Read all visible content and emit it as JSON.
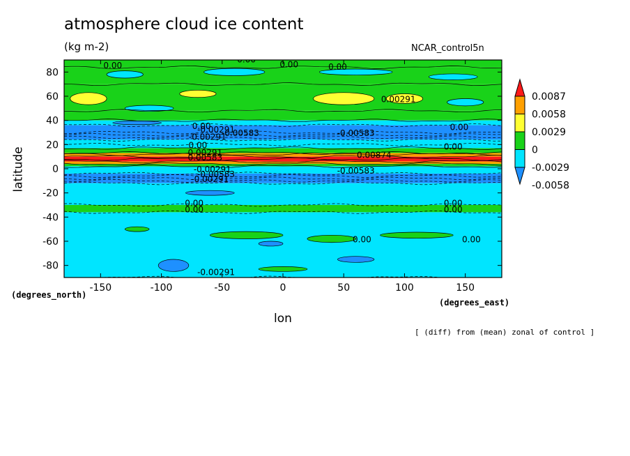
{
  "header": {
    "title": "atmosphere cloud ice content",
    "units": "(kg m-2)",
    "run": "NCAR_control5n",
    "ylabel": "latitude",
    "yunits": "(degrees_north)",
    "xlabel": "lon",
    "xunits": "(degrees_east)",
    "note": "[ (diff) from (mean) zonal of control ]"
  },
  "colors": {
    "red": "#ff1a1a",
    "orange": "#ffa000",
    "yellow": "#ffff33",
    "green": "#19d219",
    "cyan": "#00e5ff",
    "blue": "#1e90ff"
  },
  "chart_data": {
    "type": "heatmap",
    "xlim": [
      -180,
      180
    ],
    "ylim": [
      -90,
      90
    ],
    "xticks": [
      -150,
      -100,
      -50,
      0,
      50,
      100,
      150
    ],
    "yticks": [
      -80,
      -60,
      -40,
      -20,
      0,
      20,
      40,
      60,
      80
    ],
    "xtick_labels": [
      "-150",
      "-100",
      "-50",
      "0",
      "50",
      "100",
      "150"
    ],
    "ytick_labels": [
      "-80",
      "-60",
      "-40",
      "-20",
      "0",
      "20",
      "40",
      "60",
      "80"
    ],
    "colorbar": {
      "levels": [
        "0.0087",
        "0.0058",
        "0.0029",
        "0",
        "-0.0029",
        "-0.0058"
      ],
      "colors": [
        "#ff1a1a",
        "#ffa000",
        "#ffff33",
        "#19d219",
        "#00e5ff",
        "#1e90ff"
      ]
    },
    "bands": [
      {
        "lat_from": 84,
        "lat_to": 90,
        "color": "#19d219"
      },
      {
        "lat_from": 70,
        "lat_to": 84,
        "color": "#19d219"
      },
      {
        "lat_from": 48,
        "lat_to": 70,
        "color": "#19d219"
      },
      {
        "lat_from": 40,
        "lat_to": 48,
        "color": "#19d219"
      },
      {
        "lat_from": 36,
        "lat_to": 40,
        "color": "#00e5ff"
      },
      {
        "lat_from": 24,
        "lat_to": 36,
        "color": "#1e90ff"
      },
      {
        "lat_from": 17,
        "lat_to": 24,
        "color": "#00e5ff"
      },
      {
        "lat_from": 13,
        "lat_to": 17,
        "color": "#19d219"
      },
      {
        "lat_from": 10,
        "lat_to": 13,
        "color": "#ffa000"
      },
      {
        "lat_from": 6,
        "lat_to": 10,
        "color": "#ff1a1a"
      },
      {
        "lat_from": 4,
        "lat_to": 6,
        "color": "#ffa000"
      },
      {
        "lat_from": 2,
        "lat_to": 4,
        "color": "#19d219"
      },
      {
        "lat_from": -4,
        "lat_to": 2,
        "color": "#00e5ff"
      },
      {
        "lat_from": -12,
        "lat_to": -4,
        "color": "#1e90ff"
      },
      {
        "lat_from": -30,
        "lat_to": -12,
        "color": "#00e5ff"
      },
      {
        "lat_from": -36,
        "lat_to": -30,
        "color": "#19d219"
      },
      {
        "lat_from": -90,
        "lat_to": -36,
        "color": "#00e5ff"
      }
    ],
    "patches": [
      {
        "lon": -130,
        "lat": 78,
        "w": 30,
        "h": 6,
        "color": "#00e5ff"
      },
      {
        "lon": -40,
        "lat": 80,
        "w": 50,
        "h": 6,
        "color": "#00e5ff"
      },
      {
        "lon": 60,
        "lat": 80,
        "w": 60,
        "h": 5,
        "color": "#00e5ff"
      },
      {
        "lon": 140,
        "lat": 76,
        "w": 40,
        "h": 5,
        "color": "#00e5ff"
      },
      {
        "lon": -160,
        "lat": 58,
        "w": 30,
        "h": 10,
        "color": "#ffff33"
      },
      {
        "lon": -70,
        "lat": 62,
        "w": 30,
        "h": 6,
        "color": "#ffff33"
      },
      {
        "lon": 50,
        "lat": 58,
        "w": 50,
        "h": 10,
        "color": "#ffff33"
      },
      {
        "lon": 100,
        "lat": 58,
        "w": 30,
        "h": 8,
        "color": "#ffff33"
      },
      {
        "lon": -110,
        "lat": 50,
        "w": 40,
        "h": 5,
        "color": "#00e5ff"
      },
      {
        "lon": 150,
        "lat": 55,
        "w": 30,
        "h": 6,
        "color": "#00e5ff"
      },
      {
        "lon": -60,
        "lat": -20,
        "w": 40,
        "h": 4,
        "color": "#1e90ff"
      },
      {
        "lon": -120,
        "lat": -50,
        "w": 20,
        "h": 4,
        "color": "#19d219"
      },
      {
        "lon": -30,
        "lat": -55,
        "w": 60,
        "h": 6,
        "color": "#19d219"
      },
      {
        "lon": 40,
        "lat": -58,
        "w": 40,
        "h": 6,
        "color": "#19d219"
      },
      {
        "lon": 110,
        "lat": -55,
        "w": 60,
        "h": 5,
        "color": "#19d219"
      },
      {
        "lon": -90,
        "lat": -80,
        "w": 25,
        "h": 10,
        "color": "#1e90ff"
      },
      {
        "lon": -10,
        "lat": -62,
        "w": 20,
        "h": 4,
        "color": "#1e90ff"
      },
      {
        "lon": 60,
        "lat": -75,
        "w": 30,
        "h": 5,
        "color": "#1e90ff"
      },
      {
        "lon": 0,
        "lat": -83,
        "w": 40,
        "h": 4,
        "color": "#19d219"
      },
      {
        "lon": -120,
        "lat": 38,
        "w": 40,
        "h": 3,
        "color": "#1e90ff"
      }
    ],
    "contour_labels": [
      {
        "lon": -140,
        "lat": 83,
        "text": "0.00"
      },
      {
        "lon": -30,
        "lat": 88,
        "text": "0.00"
      },
      {
        "lon": 5,
        "lat": 84,
        "text": "0.00"
      },
      {
        "lon": 45,
        "lat": 82,
        "text": "0.00"
      },
      {
        "lon": 95,
        "lat": 55,
        "text": "0.00291"
      },
      {
        "lon": -67,
        "lat": 33,
        "text": "0.00"
      },
      {
        "lon": -55,
        "lat": 30,
        "text": "-0.00291"
      },
      {
        "lon": -35,
        "lat": 27,
        "text": "-0.00583"
      },
      {
        "lon": -62,
        "lat": 24,
        "text": "-0.00291"
      },
      {
        "lon": 60,
        "lat": 27,
        "text": "-0.00583"
      },
      {
        "lon": 145,
        "lat": 32,
        "text": "0.00"
      },
      {
        "lon": 140,
        "lat": 16,
        "text": "0.00"
      },
      {
        "lon": -70,
        "lat": 17,
        "text": "0.00"
      },
      {
        "lon": -64,
        "lat": 11,
        "text": "0.00291"
      },
      {
        "lon": -64,
        "lat": 7,
        "text": "0.00583"
      },
      {
        "lon": 75,
        "lat": 9,
        "text": "0.00874"
      },
      {
        "lon": -58,
        "lat": -3,
        "text": "-0.00291"
      },
      {
        "lon": -55,
        "lat": -7,
        "text": "-0.00583"
      },
      {
        "lon": -60,
        "lat": -11,
        "text": "-0.00291"
      },
      {
        "lon": 60,
        "lat": -4,
        "text": "-0.00583"
      },
      {
        "lon": -73,
        "lat": -31,
        "text": "0.00"
      },
      {
        "lon": -73,
        "lat": -36,
        "text": "0.00"
      },
      {
        "lon": 140,
        "lat": -31,
        "text": "0.00"
      },
      {
        "lon": 140,
        "lat": -36,
        "text": "0.00"
      },
      {
        "lon": 65,
        "lat": -61,
        "text": "0.00"
      },
      {
        "lon": 155,
        "lat": -61,
        "text": "0.00"
      },
      {
        "lon": -55,
        "lat": -88,
        "text": "-0.00291"
      }
    ]
  }
}
